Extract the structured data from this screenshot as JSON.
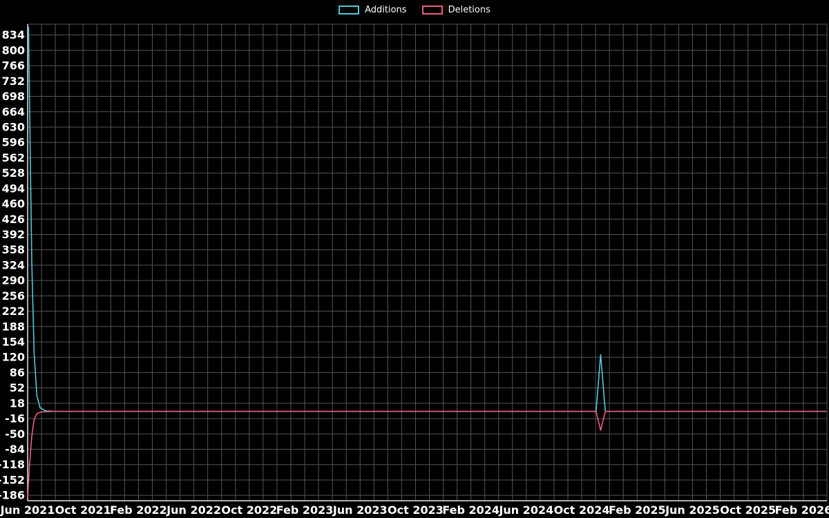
{
  "chart_data": {
    "type": "line",
    "title": "",
    "xlabel": "",
    "ylabel": "",
    "background_color": "#000000",
    "grid": true,
    "grid_color": "#555555",
    "axis_color": "#e6e6e6",
    "tick_label_color": "#ffffff",
    "legend_position": "top-center",
    "ylim": [
      -198,
      858
    ],
    "x_end_month": 57.7,
    "x_start_date": "2021-06-01",
    "y_ticks": [
      834,
      800,
      766,
      732,
      698,
      664,
      630,
      596,
      562,
      528,
      494,
      460,
      426,
      392,
      358,
      324,
      290,
      256,
      222,
      188,
      154,
      120,
      86,
      52,
      18,
      -16,
      -50,
      -84,
      -118,
      -152,
      -186
    ],
    "x_ticks": [
      {
        "label": "Jun 2021",
        "month": 0
      },
      {
        "label": "Oct 2021",
        "month": 4
      },
      {
        "label": "Feb 2022",
        "month": 8
      },
      {
        "label": "Jun 2022",
        "month": 12
      },
      {
        "label": "Oct 2022",
        "month": 16
      },
      {
        "label": "Feb 2023",
        "month": 20
      },
      {
        "label": "Jun 2023",
        "month": 24
      },
      {
        "label": "Oct 2023",
        "month": 28
      },
      {
        "label": "Feb 2024",
        "month": 32
      },
      {
        "label": "Jun 2024",
        "month": 36
      },
      {
        "label": "Oct 2024",
        "month": 40
      },
      {
        "label": "Feb 2025",
        "month": 44
      },
      {
        "label": "Jun 2025",
        "month": 48
      },
      {
        "label": "Oct 2025",
        "month": 52
      },
      {
        "label": "Feb 2026",
        "month": 56
      }
    ],
    "series": [
      {
        "name": "Additions",
        "color": "#52c8dc",
        "points": [
          [
            "2021-06-03",
            851
          ],
          [
            "2021-06-06",
            620
          ],
          [
            "2021-06-10",
            330
          ],
          [
            "2021-06-15",
            130
          ],
          [
            "2021-06-21",
            35
          ],
          [
            "2021-06-28",
            8
          ],
          [
            "2021-07-10",
            1
          ],
          [
            "2021-08-01",
            0
          ],
          [
            "2024-10-26",
            0
          ],
          [
            "2024-11-02",
            0
          ],
          [
            "2024-11-12",
            126
          ],
          [
            "2024-11-22",
            0
          ],
          [
            "2026-03-20",
            0
          ]
        ]
      },
      {
        "name": "Deletions",
        "color": "#ee5f85",
        "points": [
          [
            "2021-06-01",
            -191
          ],
          [
            "2021-06-05",
            -120
          ],
          [
            "2021-06-10",
            -55
          ],
          [
            "2021-06-15",
            -18
          ],
          [
            "2021-06-21",
            -5
          ],
          [
            "2021-07-01",
            -1
          ],
          [
            "2021-08-01",
            0
          ],
          [
            "2024-10-26",
            0
          ],
          [
            "2024-11-02",
            0
          ],
          [
            "2024-11-12",
            -42
          ],
          [
            "2024-11-22",
            0
          ],
          [
            "2026-03-20",
            0
          ]
        ]
      }
    ]
  }
}
